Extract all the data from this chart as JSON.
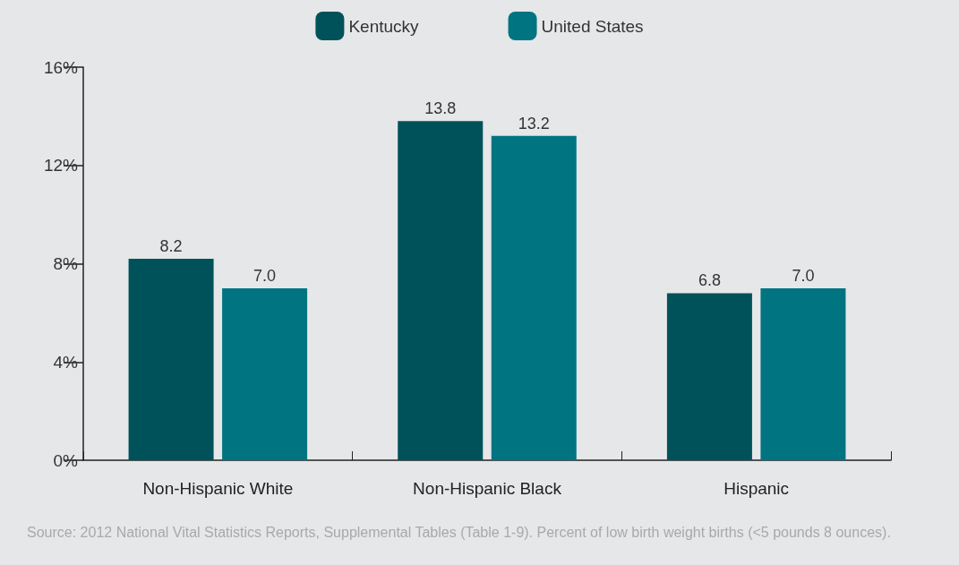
{
  "chart_data": {
    "type": "bar",
    "categories": [
      "Non-Hispanic White",
      "Non-Hispanic Black",
      "Hispanic"
    ],
    "series": [
      {
        "name": "Kentucky",
        "color": "#00525a",
        "values": [
          8.2,
          13.8,
          6.8
        ],
        "value_labels": [
          "8.2",
          "13.8",
          "6.8"
        ]
      },
      {
        "name": "United States",
        "color": "#007480",
        "values": [
          7.0,
          13.2,
          7.0
        ],
        "value_labels": [
          "7.0",
          "13.2",
          "7.0"
        ]
      }
    ],
    "ylim": [
      0,
      16
    ],
    "yticks": [
      {
        "value": 0,
        "label": "0%"
      },
      {
        "value": 4,
        "label": "4%"
      },
      {
        "value": 8,
        "label": "8%"
      },
      {
        "value": 12,
        "label": "12%"
      },
      {
        "value": 16,
        "label": "16%"
      }
    ],
    "grid": false,
    "legend": "top",
    "annotations": [
      "Source: 2012 National Vital Statistics Reports, Supplemental Tables (Table 1-9). Percent of low birth weight births (<5 pounds 8 ounces)."
    ]
  }
}
